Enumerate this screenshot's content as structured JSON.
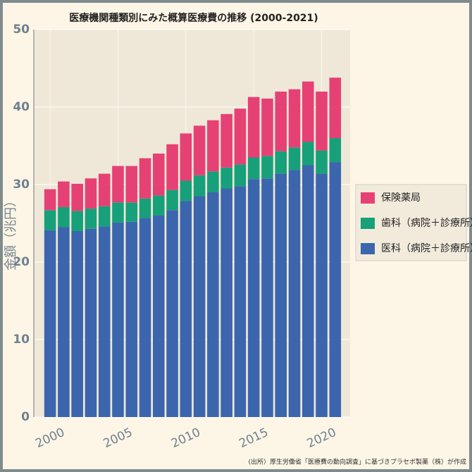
{
  "chart_data": {
    "type": "stacked_bar",
    "title": "医療機関種類別にみた概算医療費の推移 (2000-2021)",
    "y_label": "金額（兆円）",
    "note": "(出所）厚生労働省「医療費の動向調査」に基づきプラセボ製薬（株）が作成",
    "x": [
      2000,
      2001,
      2002,
      2003,
      2004,
      2005,
      2006,
      2007,
      2008,
      2009,
      2010,
      2011,
      2012,
      2013,
      2014,
      2015,
      2016,
      2017,
      2018,
      2019,
      2020,
      2021
    ],
    "series": [
      {
        "name": "医科（病院＋診療所）",
        "color": "#3b66ad",
        "values": [
          24.1,
          24.5,
          24.0,
          24.3,
          24.6,
          25.1,
          25.2,
          25.7,
          26.0,
          26.7,
          27.9,
          28.5,
          29.0,
          29.5,
          29.8,
          30.7,
          30.8,
          31.4,
          31.9,
          32.5,
          31.4,
          32.9
        ]
      },
      {
        "name": "歯科（病院＋診療所）",
        "color": "#17a07a",
        "values": [
          2.6,
          2.6,
          2.6,
          2.6,
          2.6,
          2.6,
          2.5,
          2.5,
          2.6,
          2.6,
          2.6,
          2.7,
          2.7,
          2.7,
          2.8,
          2.8,
          2.9,
          2.9,
          2.9,
          3.0,
          3.0,
          3.1
        ]
      },
      {
        "name": "保険薬局",
        "color": "#e64174",
        "values": [
          2.7,
          3.3,
          3.5,
          3.9,
          4.2,
          4.7,
          4.7,
          5.2,
          5.4,
          5.9,
          6.1,
          6.4,
          6.6,
          6.9,
          7.2,
          7.8,
          7.4,
          7.7,
          7.5,
          7.8,
          7.6,
          7.8
        ]
      }
    ],
    "xlim": [
      1998.8,
      2022.1
    ],
    "xticks": [
      2000,
      2005,
      2010,
      2015,
      2020
    ],
    "ylim": [
      0,
      50
    ],
    "yticks": [
      0,
      10,
      20,
      30,
      40,
      50
    ],
    "grid": true,
    "legend": "right"
  }
}
